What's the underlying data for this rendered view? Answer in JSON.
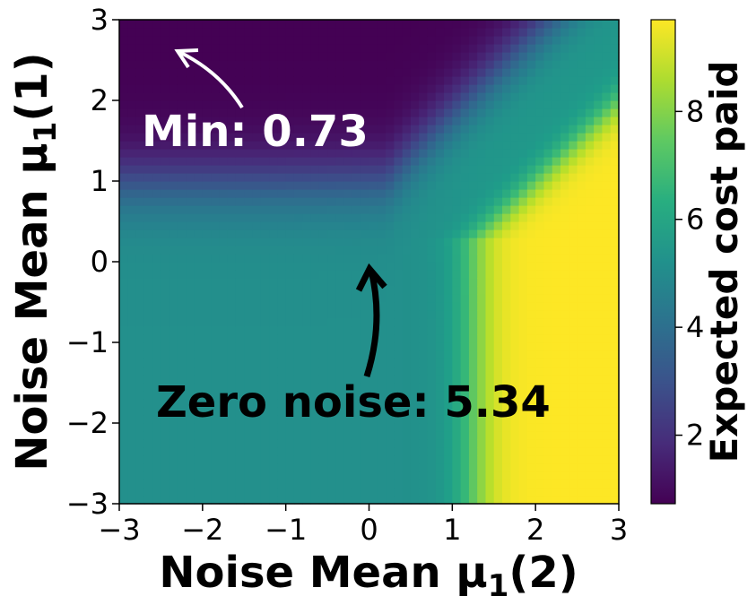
{
  "chart_data": {
    "type": "heatmap",
    "colormap": "viridis",
    "xlabel_main": "Noise Mean μ",
    "xlabel_sub": "1",
    "xlabel_paren": "(2)",
    "ylabel_main": "Noise Mean μ",
    "ylabel_sub": "1",
    "ylabel_paren": "(1)",
    "xlim": [
      -3,
      3
    ],
    "ylim": [
      -3,
      3
    ],
    "x_ticks": [
      "−3",
      "−2",
      "−1",
      "0",
      "1",
      "2",
      "3"
    ],
    "y_ticks": [
      "−3",
      "−2",
      "−1",
      "0",
      "1",
      "2",
      "3"
    ],
    "x_tick_values": [
      -3,
      -2,
      -1,
      0,
      1,
      2,
      3
    ],
    "y_tick_values": [
      -3,
      -2,
      -1,
      0,
      1,
      2,
      3
    ],
    "colorbar": {
      "label": "Expected cost paid",
      "range": [
        0.73,
        9.7
      ],
      "tick_values": [
        2,
        4,
        6,
        8
      ],
      "tick_labels": [
        "2",
        "4",
        "6",
        "8"
      ]
    },
    "annotations": [
      {
        "text": "Min: 0.73",
        "color": "#ffffff",
        "point": [
          -2.35,
          2.62
        ],
        "text_pos": [
          -2.75,
          1.6
        ]
      },
      {
        "text": "Zero noise: 5.34",
        "color": "#000000",
        "point": [
          0,
          0
        ],
        "text_pos": [
          -2.6,
          -1.7
        ]
      }
    ],
    "approximate_value_map": {
      "upper_left_region": 0.73,
      "lower_left_region": 5.2,
      "lower_right_region": 9.7,
      "zero_noise_value": 5.34,
      "diagonal_upper_right": 6.5
    }
  }
}
